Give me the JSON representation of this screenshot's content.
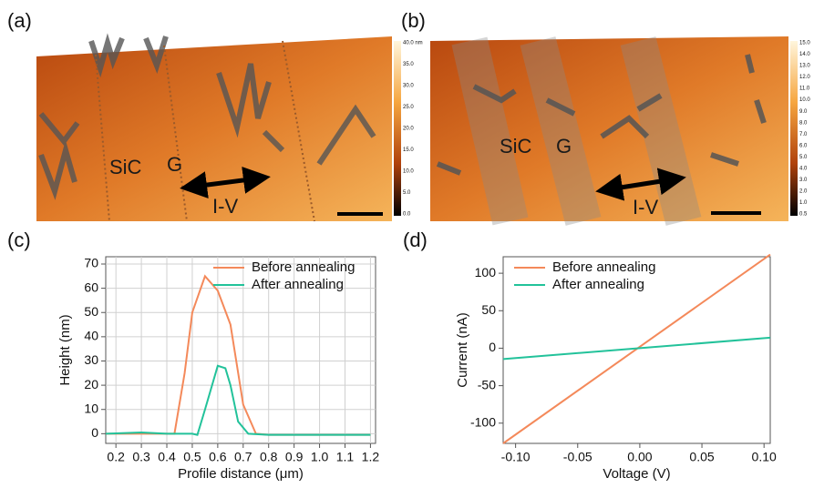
{
  "images": [
    {
      "label": "(a)",
      "texts": [
        "SiC",
        "G",
        "I-V"
      ],
      "colorbar": [
        "40.0 nm",
        "35.0",
        "30.0",
        "25.0",
        "20.0",
        "15.0",
        "10.0",
        "5.0",
        "0.0"
      ]
    },
    {
      "label": "(b)",
      "texts": [
        "SiC",
        "G",
        "I-V"
      ],
      "colorbar": [
        "15.0",
        "14.0",
        "13.0",
        "12.0",
        "11.0",
        "10.0",
        "9.0",
        "8.0",
        "7.0",
        "6.0",
        "5.0",
        "4.0",
        "3.0",
        "2.0",
        "1.0",
        "0.5"
      ]
    }
  ],
  "chart_data": [
    {
      "type": "line",
      "label": "(c)",
      "x_label": "Profile distance (μm)",
      "y_label": "Height (nm)",
      "xlim": [
        0.16,
        1.22
      ],
      "ylim": [
        -4,
        73
      ],
      "xticks": [
        0.2,
        0.3,
        0.4,
        0.5,
        0.6,
        0.7,
        0.8,
        0.9,
        {
          "value": 1,
          "label": "1.0"
        },
        1.1,
        1.2
      ],
      "yticks": [
        0,
        10,
        20,
        30,
        40,
        50,
        60,
        70
      ],
      "grid": true,
      "legend": "top-right",
      "series": [
        {
          "name": "Before annealing",
          "color": "#f4895a",
          "x": [
            0.16,
            0.3,
            0.43,
            0.47,
            0.5,
            0.55,
            0.6,
            0.65,
            0.7,
            0.75,
            0.8,
            1.0,
            1.2
          ],
          "values": [
            0,
            0,
            0,
            25,
            50,
            65,
            59,
            45,
            12,
            0,
            -0.5,
            -0.5,
            -0.5
          ]
        },
        {
          "name": "After annealing",
          "color": "#22c29a",
          "x": [
            0.16,
            0.3,
            0.4,
            0.5,
            0.52,
            0.55,
            0.6,
            0.63,
            0.65,
            0.68,
            0.72,
            0.8,
            1.2
          ],
          "values": [
            0,
            0.5,
            0,
            0,
            -0.5,
            10,
            28,
            27,
            20,
            5,
            0,
            -0.5,
            -0.5
          ]
        }
      ]
    },
    {
      "type": "line",
      "label": "(d)",
      "x_label": "Voltage (V)",
      "y_label": "Current (nA)",
      "xlim": [
        -0.11,
        0.105
      ],
      "ylim": [
        -127,
        122
      ],
      "xticks": [
        {
          "value": -0.1,
          "label": "-0.10"
        },
        -0.05,
        {
          "value": 0,
          "label": "0.00"
        },
        0.05,
        {
          "value": 0.1,
          "label": "0.10"
        }
      ],
      "yticks": [
        -100,
        -50,
        0,
        50,
        100
      ],
      "grid": false,
      "legend": "top-left",
      "series": [
        {
          "name": "Before annealing",
          "color": "#f4895a",
          "x": [
            -0.11,
            0.105
          ],
          "values": [
            -127,
            125
          ]
        },
        {
          "name": "After annealing",
          "color": "#22c29a",
          "x": [
            -0.11,
            0.105
          ],
          "values": [
            -14.5,
            14
          ]
        }
      ]
    }
  ]
}
